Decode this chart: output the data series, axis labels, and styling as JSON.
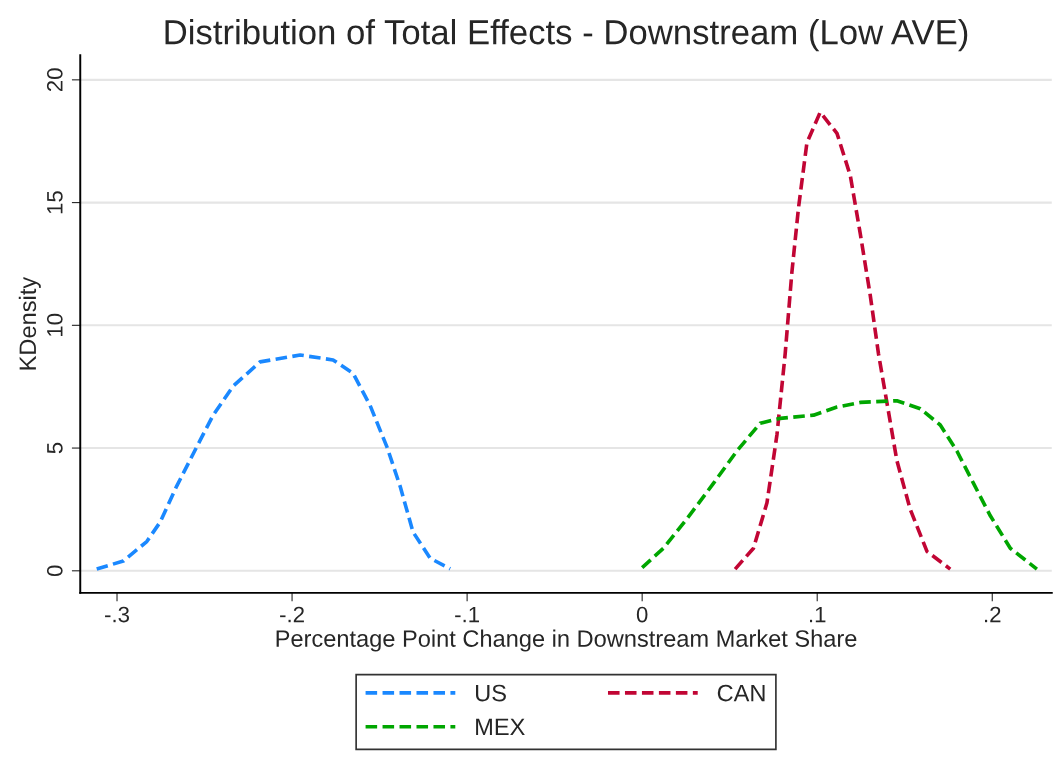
{
  "chart_data": {
    "type": "line",
    "title": "Distribution of Total Effects - Downstream (Low AVE)",
    "xlabel": "Percentage Point Change in Downstream Market Share",
    "ylabel": "KDensity",
    "xlim": [
      -0.321,
      0.234
    ],
    "xticks": [
      {
        "value": -0.3,
        "label": "-.3"
      },
      {
        "value": -0.2,
        "label": "-.2"
      },
      {
        "value": -0.1,
        "label": "-.1"
      },
      0,
      {
        "value": 0.1,
        "label": ".1"
      },
      {
        "value": 0.2,
        "label": ".2"
      }
    ],
    "ylim": [
      -0.9,
      21
    ],
    "yticks": [
      0,
      5,
      10,
      15,
      20
    ],
    "grid": "y",
    "legend": "bottom",
    "line_style": "dashed",
    "marker": "none",
    "series": [
      {
        "name": "US",
        "color": "#1a88ff",
        "x": [
          -0.3116,
          -0.2964,
          -0.283,
          -0.2754,
          -0.2659,
          -0.2566,
          -0.2451,
          -0.2337,
          -0.2183,
          -0.1954,
          -0.1766,
          -0.1651,
          -0.1554,
          -0.1457,
          -0.1383,
          -0.1309,
          -0.1211,
          -0.1097
        ],
        "values": [
          0.07,
          0.4,
          1.19,
          1.98,
          3.45,
          4.75,
          6.34,
          7.52,
          8.51,
          8.79,
          8.59,
          8.04,
          6.73,
          5.03,
          3.45,
          1.58,
          0.51,
          0.08
        ]
      },
      {
        "name": "CAN",
        "color": "#c10534",
        "x": [
          0.0531,
          0.0636,
          0.0713,
          0.077,
          0.0817,
          0.0855,
          0.0893,
          0.0941,
          0.1017,
          0.1113,
          0.1189,
          0.1246,
          0.1303,
          0.135,
          0.1398,
          0.1455,
          0.1531,
          0.1627,
          0.176
        ],
        "values": [
          0.07,
          0.92,
          2.77,
          5.54,
          8.84,
          12.14,
          14.78,
          17.43,
          18.68,
          17.82,
          16.1,
          13.73,
          11.22,
          8.84,
          6.86,
          4.49,
          2.51,
          0.79,
          0.07
        ]
      },
      {
        "name": "MEX",
        "color": "#00a600",
        "x": [
          0.0,
          0.0122,
          0.0255,
          0.0407,
          0.0541,
          0.0674,
          0.0789,
          0.0979,
          0.1113,
          0.1246,
          0.1455,
          0.1589,
          0.1703,
          0.1798,
          0.1893,
          0.1989,
          0.2103,
          0.2255
        ],
        "values": [
          0.13,
          0.92,
          2.11,
          3.56,
          4.88,
          6.01,
          6.21,
          6.34,
          6.67,
          6.86,
          6.93,
          6.6,
          5.94,
          4.88,
          3.56,
          2.24,
          0.92,
          0.07
        ]
      }
    ]
  }
}
